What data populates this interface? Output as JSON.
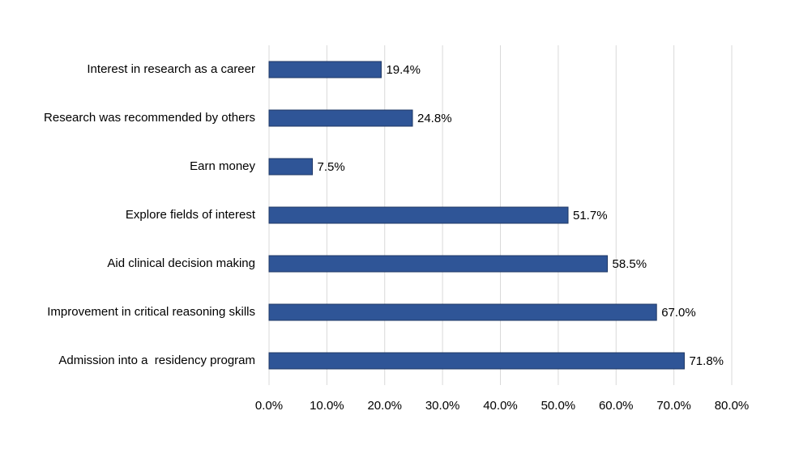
{
  "chart_data": {
    "type": "bar",
    "orientation": "horizontal",
    "categories": [
      "Interest in research as a career",
      "Research was recommended by others",
      "Earn money",
      "Explore fields of interest",
      "Aid clinical decision making",
      "Improvement in critical reasoning skills",
      "Admission into a  residency program"
    ],
    "values": [
      19.4,
      24.8,
      7.5,
      51.7,
      58.5,
      67.0,
      71.8
    ],
    "value_labels": [
      "19.4%",
      "24.8%",
      "7.5%",
      "51.7%",
      "58.5%",
      "67.0%",
      "71.8%"
    ],
    "color": "#2f5597",
    "xlim": [
      0,
      80
    ],
    "xticks": [
      {
        "value": 0,
        "label": "0.0%"
      },
      {
        "value": 10,
        "label": "10.0%"
      },
      {
        "value": 20,
        "label": "20.0%"
      },
      {
        "value": 30,
        "label": "30.0%"
      },
      {
        "value": 40,
        "label": "40.0%"
      },
      {
        "value": 50,
        "label": "50.0%"
      },
      {
        "value": 60,
        "label": "60.0%"
      },
      {
        "value": 70,
        "label": "70.0%"
      },
      {
        "value": 80,
        "label": "80.0%"
      }
    ],
    "grid": true
  }
}
